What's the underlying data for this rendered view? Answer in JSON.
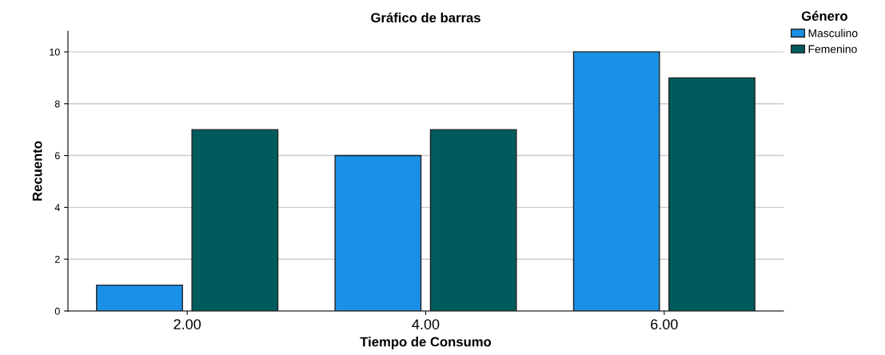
{
  "chart_data": {
    "type": "bar",
    "title": "Gráfico de barras",
    "xlabel": "Tiempo de Consumo",
    "ylabel": "Recuento",
    "legend_title": "Género",
    "categories": [
      "2.00",
      "4.00",
      "6.00"
    ],
    "series": [
      {
        "name": "Masculino",
        "color": "#1a90e6",
        "values": [
          1,
          6,
          10
        ]
      },
      {
        "name": "Femenino",
        "color": "#005c5c",
        "values": [
          7,
          7,
          9
        ]
      }
    ],
    "ylim": [
      0,
      10.8
    ],
    "yticks": [
      0,
      2,
      4,
      6,
      8,
      10
    ],
    "grid": "y",
    "legend": "top right"
  }
}
